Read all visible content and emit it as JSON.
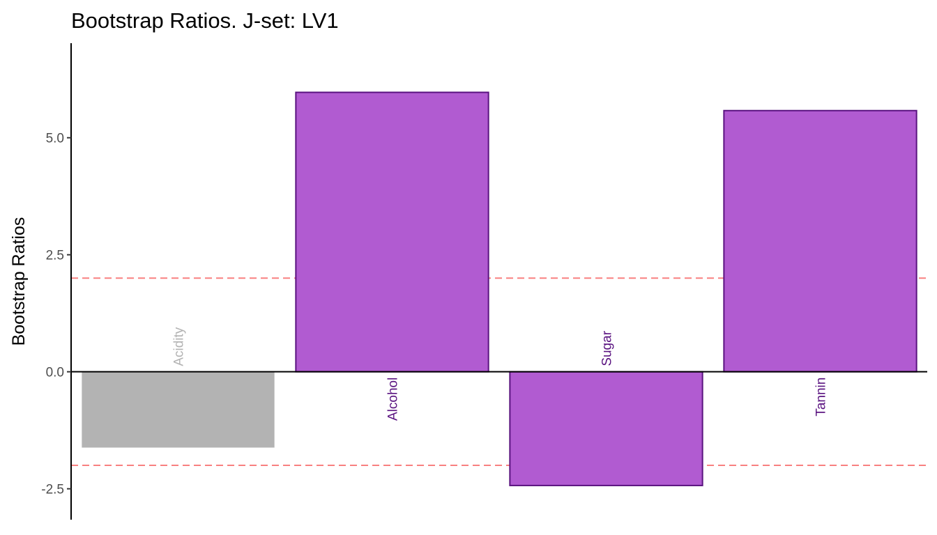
{
  "chart_data": {
    "type": "bar",
    "title": "Bootstrap Ratios. J-set: LV1",
    "xlabel": "",
    "ylabel": "Bootstrap Ratios",
    "categories": [
      "Acidity",
      "Alcohol",
      "Sugar",
      "Tannin"
    ],
    "values": [
      -1.62,
      5.97,
      -2.43,
      5.58
    ],
    "significant": [
      false,
      true,
      true,
      true
    ],
    "ylim": [
      -3.16,
      7.02
    ],
    "yticks": [
      -2.5,
      0,
      2.5,
      5
    ],
    "ytick_labels": [
      "-2.5",
      "0.0",
      "2.5",
      "5.0"
    ],
    "threshold": 2,
    "grid": false,
    "colors": {
      "significant_fill": "#b15bd1",
      "significant_stroke": "#5a1380",
      "significant_label": "#5a1380",
      "nonsignificant_fill": "#b3b3b3",
      "nonsignificant_label": "#b3b3b3",
      "threshold_line": "#f88080",
      "axis": "#000000"
    }
  }
}
